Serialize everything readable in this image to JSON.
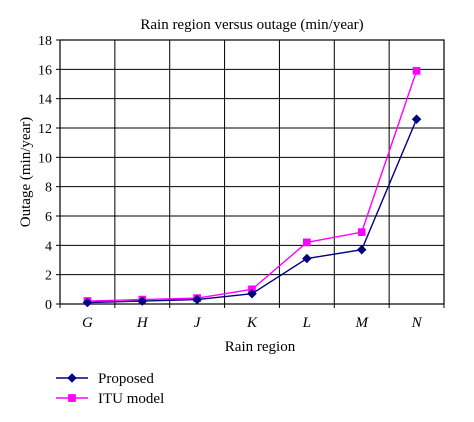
{
  "chart_data": {
    "type": "line",
    "title": "Rain region versus outage (min/year)",
    "xlabel": "Rain region",
    "ylabel": "Outage (min/year)",
    "categories": [
      "G",
      "H",
      "J",
      "K",
      "L",
      "M",
      "N"
    ],
    "ylim": [
      0,
      18
    ],
    "yticks": [
      "0",
      "2",
      "4",
      "6",
      "8",
      "10",
      "12",
      "14",
      "16",
      "18"
    ],
    "grid": true,
    "legend_position": "bottom-left",
    "series": [
      {
        "name": "Proposed",
        "color": "#000080",
        "marker": "diamond",
        "values": [
          0.1,
          0.2,
          0.3,
          0.7,
          3.1,
          3.7,
          12.6
        ]
      },
      {
        "name": "ITU model",
        "color": "#ff00ff",
        "marker": "square",
        "values": [
          0.2,
          0.3,
          0.4,
          1.0,
          4.2,
          4.9,
          15.9
        ]
      }
    ]
  }
}
